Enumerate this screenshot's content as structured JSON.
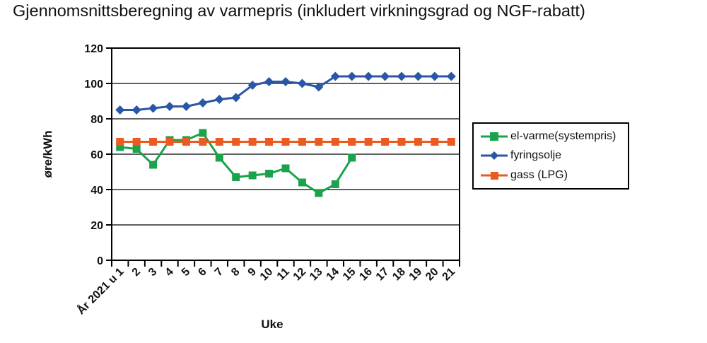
{
  "chart_data": {
    "type": "line",
    "title": "Gjennomsnittsberegning av varmepris (inkludert virkningsgrad og NGF-rabatt)",
    "xlabel": "Uke",
    "ylabel": "øre/kWh",
    "ylim": [
      0,
      120
    ],
    "yticks": [
      0,
      20,
      40,
      60,
      80,
      100,
      120
    ],
    "grid": "horizontal-black-lines",
    "legend_position": "right",
    "categories": [
      "År 2021 u 1",
      "2",
      "3",
      "4",
      "5",
      "6",
      "7",
      "8",
      "9",
      "10",
      "11",
      "12",
      "13",
      "14",
      "15",
      "16",
      "17",
      "18",
      "19",
      "20",
      "21"
    ],
    "series": [
      {
        "name": "el-varme(systempris)",
        "color": "#1aa34c",
        "marker": "square",
        "values": [
          64,
          63,
          54,
          68,
          68,
          72,
          58,
          47,
          48,
          49,
          52,
          44,
          38,
          43,
          58
        ]
      },
      {
        "name": "fyringsolje",
        "color": "#2a57a5",
        "marker": "diamond",
        "values": [
          85,
          85,
          86,
          87,
          87,
          89,
          91,
          92,
          99,
          101,
          101,
          100,
          98,
          104,
          104,
          104,
          104,
          104,
          104,
          104,
          104
        ]
      },
      {
        "name": "gass (LPG)",
        "color": "#eb5a20",
        "marker": "square",
        "values": [
          67,
          67,
          67,
          67,
          67,
          67,
          67,
          67,
          67,
          67,
          67,
          67,
          67,
          67,
          67,
          67,
          67,
          67,
          67,
          67,
          67
        ]
      }
    ]
  }
}
